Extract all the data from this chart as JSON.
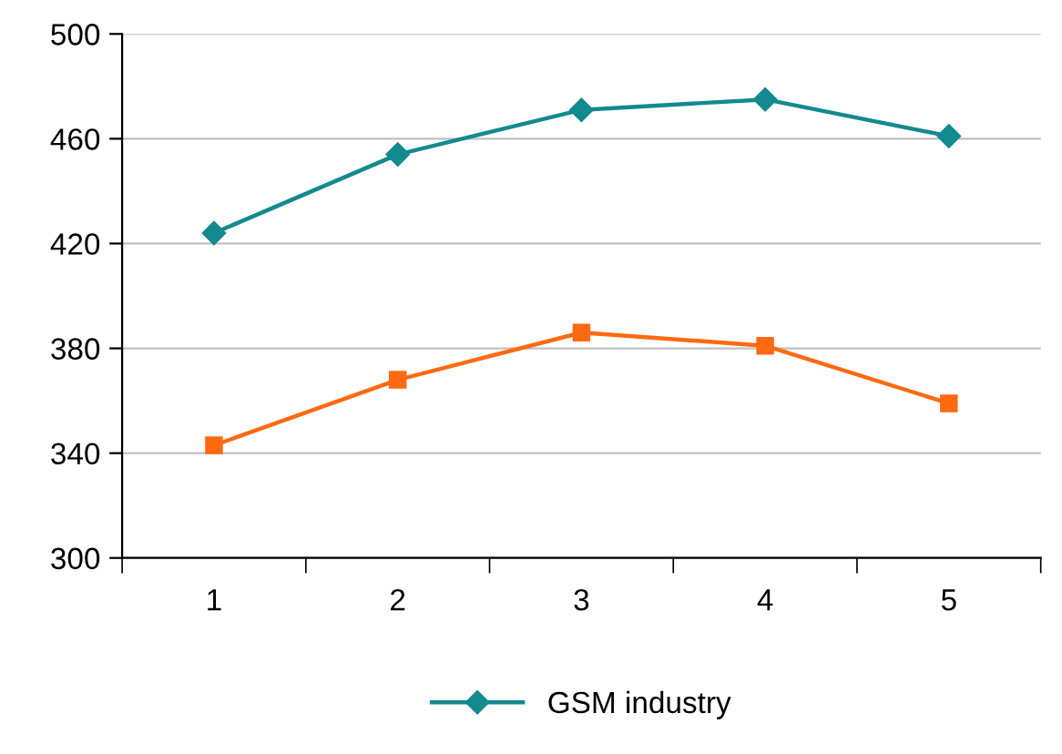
{
  "chart_data": {
    "type": "line",
    "categories": [
      "1",
      "2",
      "3",
      "4",
      "5"
    ],
    "series": [
      {
        "name": "GSM industry",
        "color": "#138a8f",
        "marker": "diamond",
        "values": [
          424,
          454,
          471,
          475,
          461
        ]
      },
      {
        "color": "#ff6a10",
        "marker": "square",
        "values": [
          343,
          368,
          386,
          381,
          359
        ]
      }
    ],
    "ylim": [
      300,
      500
    ],
    "yticks": [
      300,
      340,
      380,
      420,
      460,
      500
    ],
    "grid": "y",
    "legend": "bottom"
  }
}
